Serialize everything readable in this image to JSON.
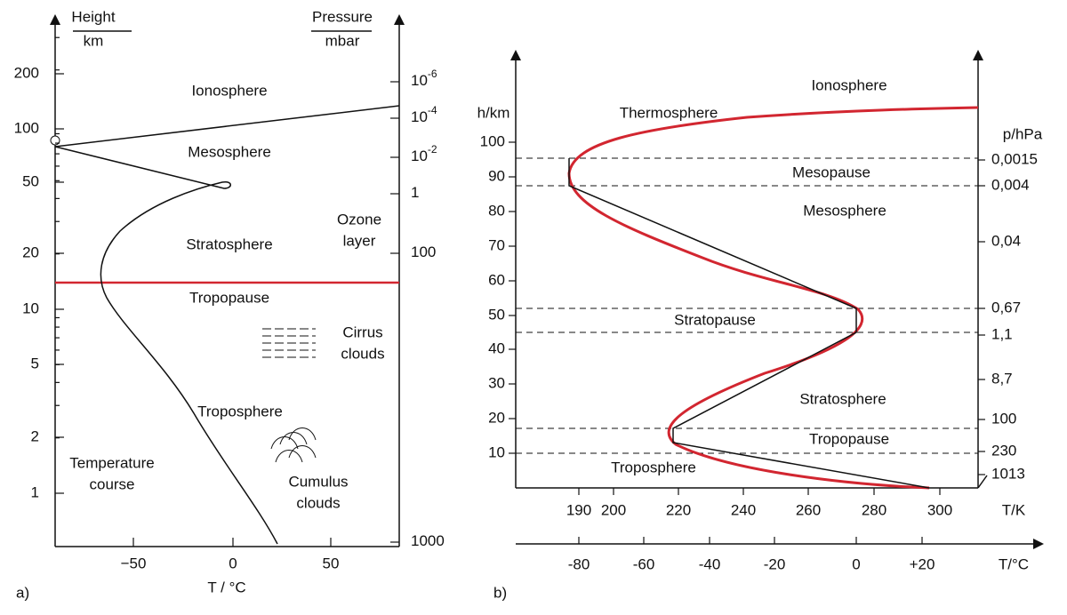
{
  "panel_a": {
    "label": "a)",
    "height_title": "Height",
    "height_unit": "km",
    "pressure_title": "Pressure",
    "pressure_unit": "mbar",
    "height_ticks": [
      "200",
      "100",
      "50",
      "20",
      "10",
      "5",
      "2",
      "1"
    ],
    "pressure_ticks": [
      {
        "base": "10",
        "exp": "-6"
      },
      {
        "base": "10",
        "exp": "-4"
      },
      {
        "base": "10",
        "exp": "-2"
      },
      {
        "base": "1",
        "exp": ""
      },
      {
        "base": "100",
        "exp": ""
      },
      {
        "base": "1000",
        "exp": ""
      }
    ],
    "temp_ticks": [
      "−50",
      "0",
      "50"
    ],
    "x_label": "T / °C",
    "regions": [
      "Ionosphere",
      "Mesosphere",
      "Stratosphere",
      "Tropopause",
      "Troposphere"
    ],
    "notes": [
      [
        "Ozone",
        "layer"
      ],
      [
        "Cirrus",
        "clouds"
      ],
      [
        "Temperature",
        "course"
      ],
      [
        "Cumulus",
        "clouds"
      ]
    ]
  },
  "panel_b": {
    "label": "b)",
    "y_label": "h/km",
    "p_label": "p/hPa",
    "height_ticks": [
      "100",
      "90",
      "80",
      "70",
      "60",
      "50",
      "40",
      "30",
      "20",
      "10"
    ],
    "pressure_ticks": [
      "0,0015",
      "0,004",
      "0,04",
      "0,67",
      "1,1",
      "8,7",
      "100",
      "230",
      "1013"
    ],
    "kelvin_ticks": [
      "190",
      "200",
      "220",
      "240",
      "260",
      "280",
      "300"
    ],
    "kelvin_label": "T/K",
    "celsius_ticks": [
      "-80",
      "-60",
      "-40",
      "-20",
      "0",
      "+20"
    ],
    "celsius_label": "T/°C",
    "regions": [
      "Ionosphere",
      "Thermosphere",
      "Mesopause",
      "Mesosphere",
      "Stratopause",
      "Stratosphere",
      "Tropopause",
      "Troposphere"
    ]
  }
}
